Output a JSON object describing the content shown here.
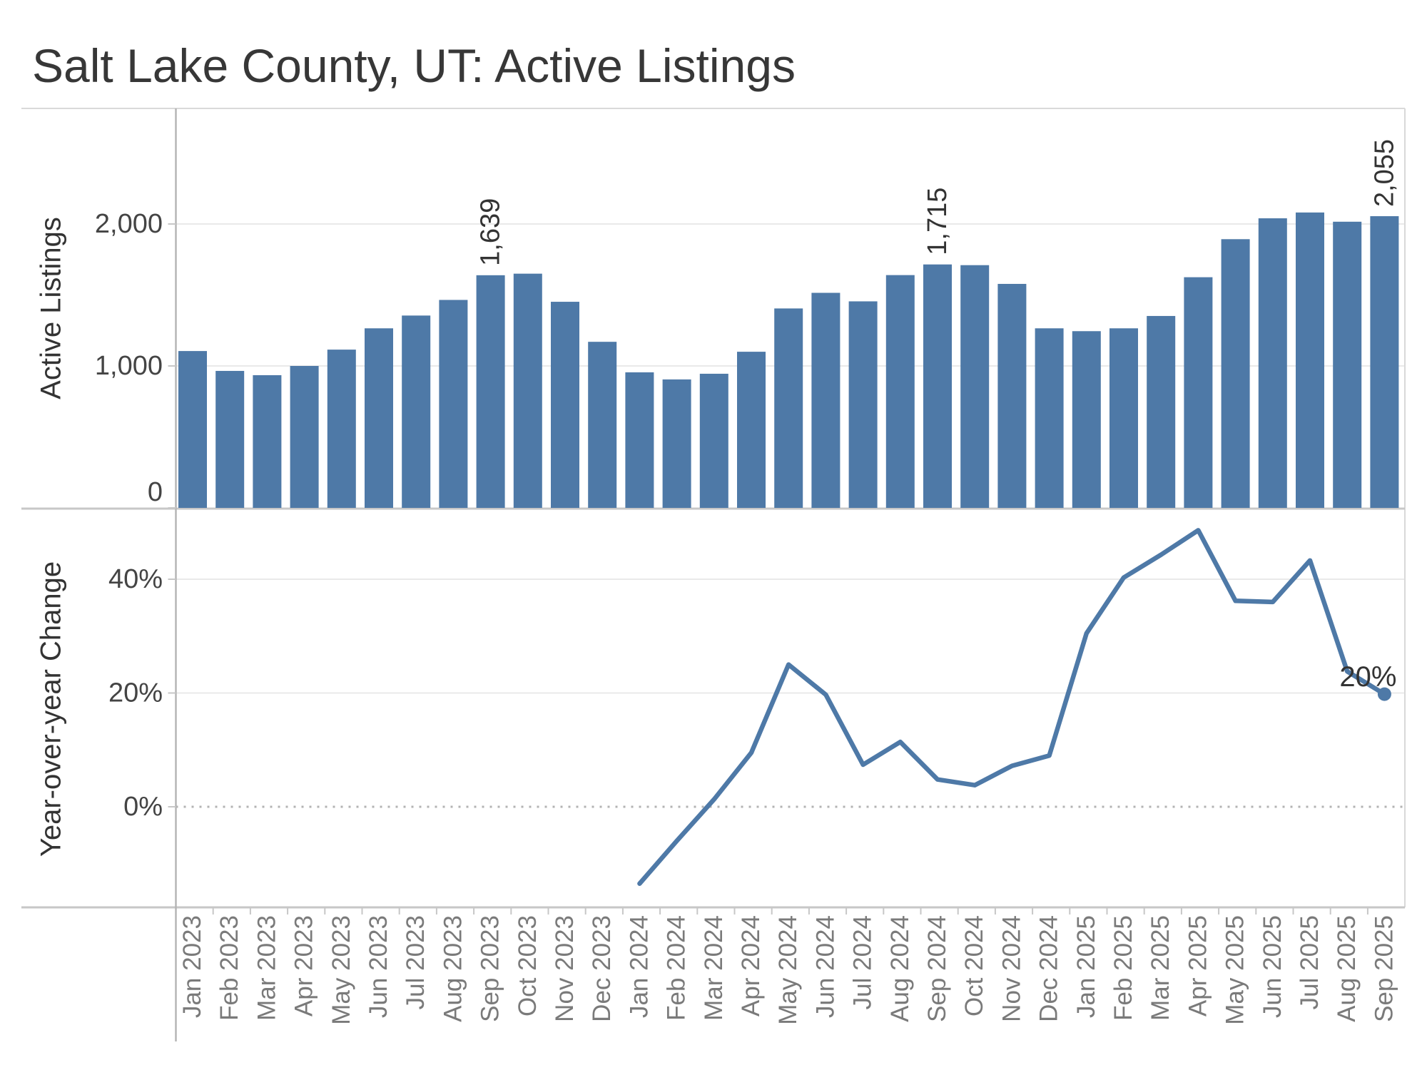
{
  "title": "Salt Lake County, UT: Active Listings",
  "colors": {
    "bar": "#4e79a7",
    "line": "#4e79a7",
    "gridline": "#e9e9e9",
    "zero_dotted_line": "#b3b3b3",
    "axis_line": "#b5b5b5",
    "panel_border": "#d9d9d9",
    "divider": "#c7c7c7",
    "tick_mark": "#c7c7c7",
    "title_text": "#373737",
    "axis_title_text": "#333333",
    "tick_label_text": "#444444",
    "month_label_text": "#7a7a7a",
    "mark_label_text": "#333333"
  },
  "chart_data": [
    {
      "type": "bar",
      "title": "",
      "xlabel": "",
      "ylabel": "Active Listings",
      "categories": [
        "Jan 2023",
        "Feb 2023",
        "Mar 2023",
        "Apr 2023",
        "May 2023",
        "Jun 2023",
        "Jul 2023",
        "Aug 2023",
        "Sep 2023",
        "Oct 2023",
        "Nov 2023",
        "Dec 2023",
        "Jan 2024",
        "Feb 2024",
        "Mar 2024",
        "Apr 2024",
        "May 2024",
        "Jun 2024",
        "Jul 2024",
        "Aug 2024",
        "Sep 2024",
        "Oct 2024",
        "Nov 2024",
        "Dec 2024",
        "Jan 2025",
        "Feb 2025",
        "Mar 2025",
        "Apr 2025",
        "May 2025",
        "Jun 2025",
        "Jul 2025",
        "Aug 2025",
        "Sep 2025"
      ],
      "values": [
        1105,
        965,
        935,
        1000,
        1115,
        1265,
        1355,
        1465,
        1639,
        1650,
        1452,
        1170,
        955,
        905,
        945,
        1100,
        1405,
        1515,
        1455,
        1640,
        1715,
        1710,
        1578,
        1265,
        1245,
        1265,
        1352,
        1625,
        1893,
        2040,
        2081,
        2016,
        2055
      ],
      "yticks": [
        0,
        1000,
        2000
      ],
      "ytick_labels": [
        "0",
        "1,000",
        "2,000"
      ],
      "ylim": [
        0,
        2815
      ],
      "grid": true,
      "legend": false,
      "value_labels": [
        {
          "index": 8,
          "category": "Sep 2023",
          "text": "1,639"
        },
        {
          "index": 20,
          "category": "Sep 2024",
          "text": "1,715"
        },
        {
          "index": 32,
          "category": "Sep 2025",
          "text": "2,055"
        }
      ]
    },
    {
      "type": "line",
      "title": "",
      "xlabel": "",
      "ylabel": "Year-over-year Change",
      "start_category": "Jan 2024",
      "start_index": 12,
      "values": [
        -13.5,
        -6.0,
        1.3,
        9.5,
        25.0,
        19.7,
        7.4,
        11.4,
        4.8,
        3.8,
        7.2,
        9.0,
        30.5,
        40.3,
        44.3,
        48.6,
        36.2,
        36.0,
        43.3,
        23.8,
        19.8
      ],
      "yticks": [
        0,
        20,
        40
      ],
      "ytick_labels": [
        "0%",
        "20%",
        "40%"
      ],
      "ylim": [
        -18.5,
        52.8
      ],
      "grid": true,
      "legend": false,
      "zero_line": "dotted",
      "end_marker": true,
      "end_label": "20%"
    }
  ]
}
